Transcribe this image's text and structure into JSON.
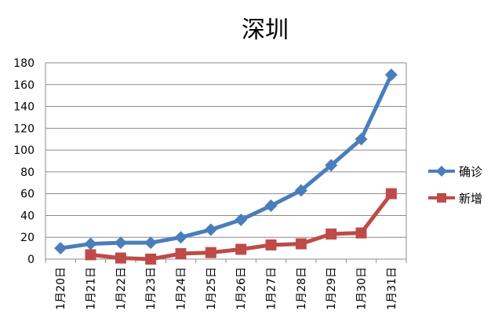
{
  "chart_data": {
    "type": "line",
    "title": "深圳",
    "categories": [
      "1月20日",
      "1月21日",
      "1月22日",
      "1月23日",
      "1月24日",
      "1月25日",
      "1月26日",
      "1月27日",
      "1月28日",
      "1月29日",
      "1月30日",
      "1月31日"
    ],
    "ylim": [
      0,
      180
    ],
    "yticks": [
      0,
      20,
      40,
      60,
      80,
      100,
      120,
      140,
      160,
      180
    ],
    "grid": true,
    "legend": "right",
    "series": [
      {
        "name": "确诊",
        "color": "#4a7ebb",
        "marker": "diamond",
        "values": [
          10,
          14,
          15,
          15,
          20,
          27,
          36,
          49,
          63,
          86,
          110,
          169
        ]
      },
      {
        "name": "新增",
        "color": "#be4b48",
        "marker": "square",
        "values": [
          null,
          4,
          1,
          0,
          5,
          6,
          9,
          13,
          14,
          23,
          24,
          60
        ]
      }
    ]
  }
}
